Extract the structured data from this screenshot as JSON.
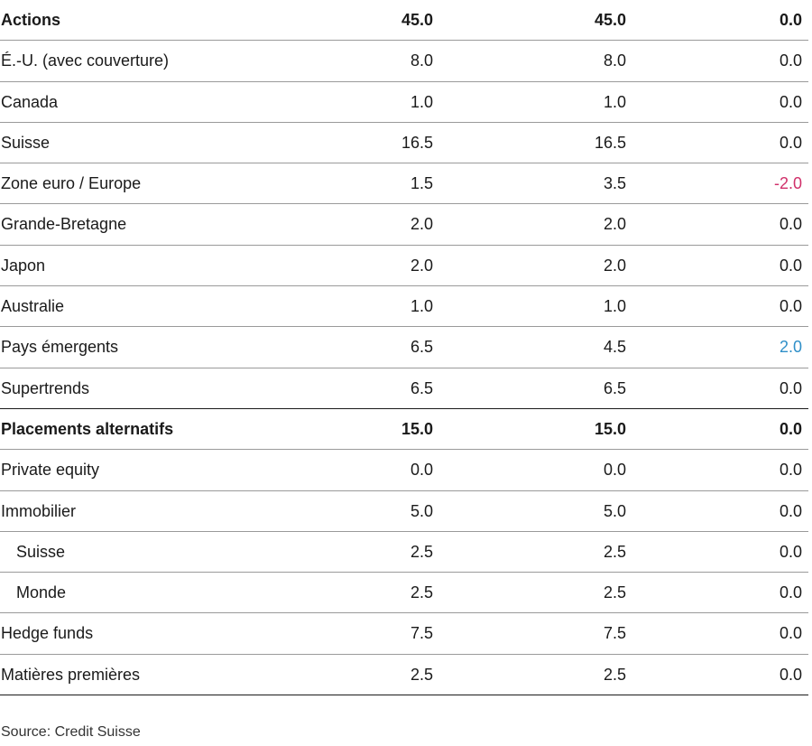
{
  "rows": [
    {
      "label": "Actions",
      "v1": "45.0",
      "v2": "45.0",
      "v3": "0.0",
      "bold": true,
      "indent": false,
      "tone": ""
    },
    {
      "label": "É.-U. (avec couverture)",
      "v1": "8.0",
      "v2": "8.0",
      "v3": "0.0",
      "bold": false,
      "indent": false,
      "tone": ""
    },
    {
      "label": "Canada",
      "v1": "1.0",
      "v2": "1.0",
      "v3": "0.0",
      "bold": false,
      "indent": false,
      "tone": ""
    },
    {
      "label": "Suisse",
      "v1": "16.5",
      "v2": "16.5",
      "v3": "0.0",
      "bold": false,
      "indent": false,
      "tone": ""
    },
    {
      "label": "Zone euro / Europe",
      "v1": "1.5",
      "v2": "3.5",
      "v3": "-2.0",
      "bold": false,
      "indent": false,
      "tone": "neg"
    },
    {
      "label": "Grande-Bretagne",
      "v1": "2.0",
      "v2": "2.0",
      "v3": "0.0",
      "bold": false,
      "indent": false,
      "tone": ""
    },
    {
      "label": "Japon",
      "v1": "2.0",
      "v2": "2.0",
      "v3": "0.0",
      "bold": false,
      "indent": false,
      "tone": ""
    },
    {
      "label": "Australie",
      "v1": "1.0",
      "v2": "1.0",
      "v3": "0.0",
      "bold": false,
      "indent": false,
      "tone": ""
    },
    {
      "label": "Pays émergents",
      "v1": "6.5",
      "v2": "4.5",
      "v3": "2.0",
      "bold": false,
      "indent": false,
      "tone": "pos"
    },
    {
      "label": "Supertrends",
      "v1": "6.5",
      "v2": "6.5",
      "v3": "0.0",
      "bold": false,
      "indent": false,
      "tone": "",
      "section_end": true
    },
    {
      "label": "Placements alternatifs",
      "v1": "15.0",
      "v2": "15.0",
      "v3": "0.0",
      "bold": true,
      "indent": false,
      "tone": ""
    },
    {
      "label": "Private equity",
      "v1": "0.0",
      "v2": "0.0",
      "v3": "0.0",
      "bold": false,
      "indent": false,
      "tone": ""
    },
    {
      "label": "Immobilier",
      "v1": "5.0",
      "v2": "5.0",
      "v3": "0.0",
      "bold": false,
      "indent": false,
      "tone": ""
    },
    {
      "label": "Suisse",
      "v1": "2.5",
      "v2": "2.5",
      "v3": "0.0",
      "bold": false,
      "indent": true,
      "tone": ""
    },
    {
      "label": "Monde",
      "v1": "2.5",
      "v2": "2.5",
      "v3": "0.0",
      "bold": false,
      "indent": true,
      "tone": ""
    },
    {
      "label": "Hedge funds",
      "v1": "7.5",
      "v2": "7.5",
      "v3": "0.0",
      "bold": false,
      "indent": false,
      "tone": ""
    },
    {
      "label": "Matières premières",
      "v1": "2.5",
      "v2": "2.5",
      "v3": "0.0",
      "bold": false,
      "indent": false,
      "tone": "",
      "last": true
    }
  ],
  "colors": {
    "negative": "#d0306a",
    "positive": "#2f8fc8"
  },
  "source": "Source: Credit Suisse"
}
